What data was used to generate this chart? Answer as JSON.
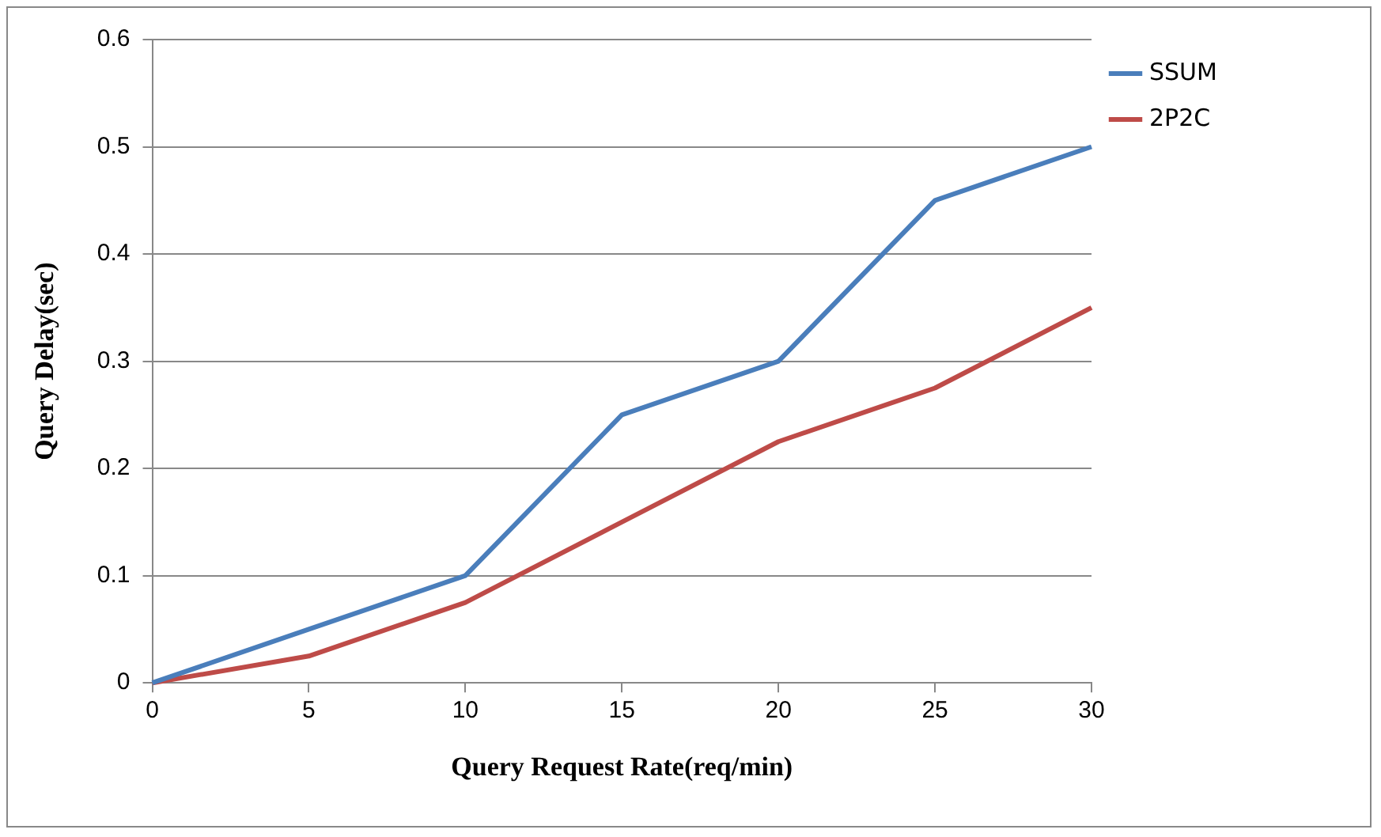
{
  "chart_data": {
    "type": "line",
    "xlabel": "Query Request Rate(req/min)",
    "ylabel": "Query Delay(sec)",
    "x": [
      0,
      5,
      10,
      15,
      20,
      25,
      30
    ],
    "series": [
      {
        "name": "SSUM",
        "color": "#4a7ebb",
        "values": [
          0,
          0.05,
          0.1,
          0.25,
          0.3,
          0.45,
          0.5
        ]
      },
      {
        "name": "2P2C",
        "color": "#be4b48",
        "values": [
          0,
          0.025,
          0.075,
          0.15,
          0.225,
          0.275,
          0.35
        ]
      }
    ],
    "xlim": [
      0,
      30
    ],
    "xticks": [
      0,
      5,
      10,
      15,
      20,
      25,
      30
    ],
    "ylim": [
      0,
      0.6
    ],
    "yticks": [
      0,
      0.1,
      0.2,
      0.3,
      0.4,
      0.5,
      0.6
    ],
    "grid": "y",
    "legend": "right",
    "marker": "none",
    "line_style": "solid"
  }
}
